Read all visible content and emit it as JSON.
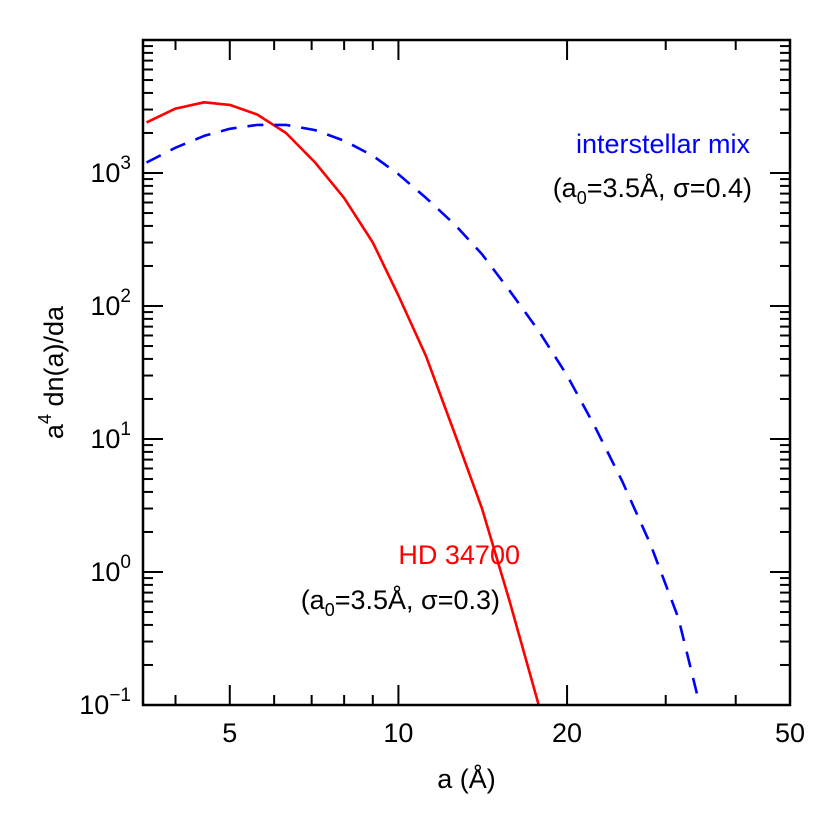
{
  "chart_data": {
    "type": "line",
    "xlabel": "a (Å)",
    "ylabel": "a4 dn(a)/da",
    "ylabel_parts": {
      "base": "a",
      "sup": "4",
      "rest": " dn(a)/da"
    },
    "x_scale": "log",
    "y_scale": "log",
    "xlim": [
      3.5,
      50
    ],
    "ylim": [
      0.1,
      10000
    ],
    "x_tick_labels": [
      {
        "value": 5,
        "label": "5"
      },
      {
        "value": 10,
        "label": "10"
      },
      {
        "value": 20,
        "label": "20"
      },
      {
        "value": 50,
        "label": "50"
      }
    ],
    "y_tick_labels": [
      {
        "value": 0.1,
        "base": "10",
        "exp": "−1"
      },
      {
        "value": 1,
        "base": "10",
        "exp": "0"
      },
      {
        "value": 10,
        "base": "10",
        "exp": "1"
      },
      {
        "value": 100,
        "base": "10",
        "exp": "2"
      },
      {
        "value": 1000,
        "base": "10",
        "exp": "3"
      }
    ],
    "grid": false,
    "legend": "none",
    "series": [
      {
        "name": "HD 34700",
        "color": "#ff0000",
        "style": "solid",
        "label_line2": {
          "open": "(a",
          "sub": "0",
          "rest": "=3.5Å, σ=0.3)"
        },
        "x": [
          3.55,
          4.0,
          4.5,
          5.0,
          5.6,
          6.3,
          7.1,
          8.0,
          9.0,
          10.0,
          11.2,
          12.6,
          14.1,
          15.8,
          17.8
        ],
        "y": [
          2400,
          3050,
          3400,
          3250,
          2750,
          2000,
          1200,
          650,
          300,
          120,
          42,
          11,
          3.0,
          0.6,
          0.1
        ]
      },
      {
        "name": "interstellar mix",
        "color": "#0000ff",
        "style": "dashed",
        "label_line2": {
          "open": "(a",
          "sub": "0",
          "rest": "=3.5Å, σ=0.4)"
        },
        "x": [
          3.55,
          4.0,
          4.5,
          5.0,
          5.6,
          6.3,
          7.1,
          8.0,
          9.0,
          10.0,
          11.2,
          12.6,
          14.1,
          15.8,
          17.8,
          20.0,
          22.4,
          25.1,
          28.2,
          31.6,
          34.5
        ],
        "y": [
          1200,
          1550,
          1900,
          2150,
          2300,
          2300,
          2100,
          1750,
          1350,
          980,
          650,
          410,
          245,
          130,
          65,
          30,
          12.5,
          4.8,
          1.6,
          0.45,
          0.1
        ]
      }
    ]
  }
}
